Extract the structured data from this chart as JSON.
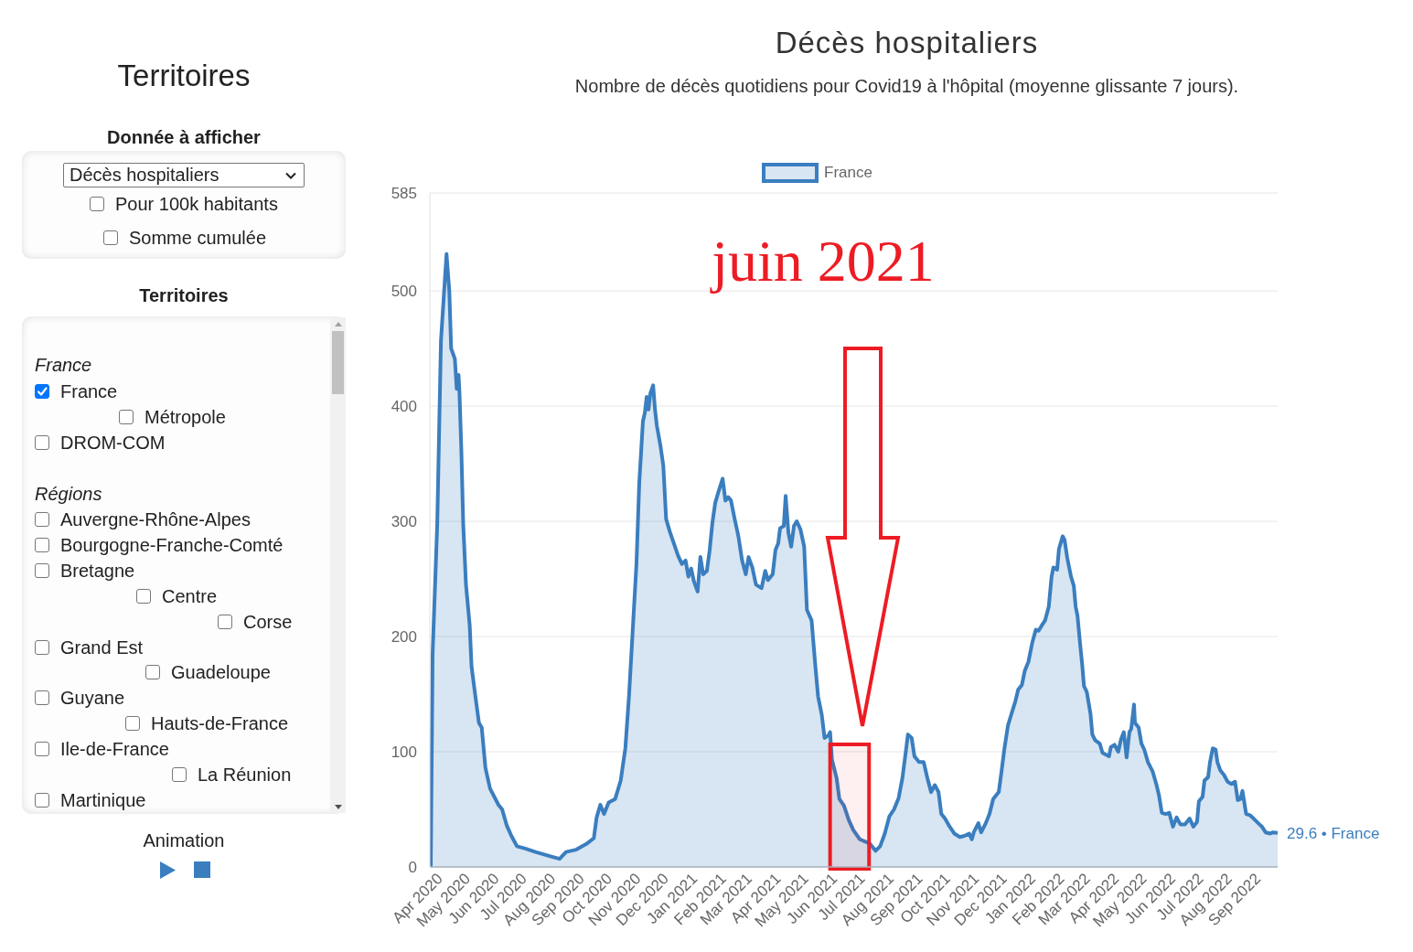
{
  "chart_data": [
    {
      "type": "other",
      "title": "Territoires",
      "annotations": [
        "Donnée à afficher",
        "Décès hospitaliers",
        "Pour 100k habitants",
        "Somme cumulée",
        "Territoires",
        "France",
        "France",
        "Métropole",
        "DROM-COM",
        "Régions",
        "Auvergne-Rhône-Alpes",
        "Bourgogne-Franche-Comté",
        "Bretagne",
        "Centre",
        "Corse",
        "Grand Est",
        "Guadeloupe",
        "Guyane",
        "Hauts-de-France",
        "Ile-de-France",
        "La Réunion",
        "Martinique",
        "Animation"
      ]
    },
    {
      "type": "area",
      "title": "Décès hospitaliers",
      "subtitle": "Nombre de décès quotidiens pour Covid19 à l'hôpital (moyenne glissante 7 jours).",
      "x": [
        "2020-03-29",
        "2020-03-31",
        "2020-04-05",
        "2020-04-09",
        "2020-04-15",
        "2020-04-18",
        "2020-04-20",
        "2020-04-24",
        "2020-04-26",
        "2020-04-28",
        "2020-04-29",
        "2020-05-01",
        "2020-05-03",
        "2020-05-06",
        "2020-05-10",
        "2020-05-12",
        "2020-05-16",
        "2020-05-20",
        "2020-05-23",
        "2020-05-27",
        "2020-06-01",
        "2020-06-10",
        "2020-06-14",
        "2020-06-19",
        "2020-06-24",
        "2020-06-30",
        "2020-07-09",
        "2020-07-20",
        "2020-08-06",
        "2020-08-15",
        "2020-08-22",
        "2020-09-02",
        "2020-09-13",
        "2020-09-21",
        "2020-09-24",
        "2020-09-28",
        "2020-10-02",
        "2020-10-07",
        "2020-10-14",
        "2020-10-20",
        "2020-10-25",
        "2020-10-29",
        "2020-11-02",
        "2020-11-06",
        "2020-11-09",
        "2020-11-13",
        "2020-11-15",
        "2020-11-17",
        "2020-11-19",
        "2020-11-21",
        "2020-11-24",
        "2020-11-26",
        "2020-11-28",
        "2020-12-02",
        "2020-12-05",
        "2020-12-08",
        "2020-12-12",
        "2020-12-21",
        "2020-12-25",
        "2020-12-29",
        "2021-01-01",
        "2021-01-04",
        "2021-01-07",
        "2021-01-11",
        "2021-01-14",
        "2021-01-17",
        "2021-01-21",
        "2021-01-24",
        "2021-01-27",
        "2021-01-30",
        "2021-02-03",
        "2021-02-07",
        "2021-02-10",
        "2021-02-13",
        "2021-02-16",
        "2021-02-20",
        "2021-02-24",
        "2021-02-28",
        "2021-03-04",
        "2021-03-07",
        "2021-03-11",
        "2021-03-15",
        "2021-03-21",
        "2021-03-25",
        "2021-03-28",
        "2021-04-02",
        "2021-04-05",
        "2021-04-08",
        "2021-04-10",
        "2021-04-14",
        "2021-04-16",
        "2021-04-19",
        "2021-04-22",
        "2021-04-25",
        "2021-04-28",
        "2021-05-02",
        "2021-05-06",
        "2021-05-09",
        "2021-05-14",
        "2021-05-18",
        "2021-05-21",
        "2021-05-25",
        "2021-05-28",
        "2021-06-01",
        "2021-06-03",
        "2021-06-05",
        "2021-06-10",
        "2021-06-13",
        "2021-06-18",
        "2021-06-23",
        "2021-06-28",
        "2021-07-05",
        "2021-07-11",
        "2021-07-16",
        "2021-07-22",
        "2021-07-27",
        "2021-08-01",
        "2021-08-06",
        "2021-08-11",
        "2021-08-16",
        "2021-08-20",
        "2021-08-24",
        "2021-08-26",
        "2021-08-30",
        "2021-09-02",
        "2021-09-07",
        "2021-09-12",
        "2021-09-16",
        "2021-09-20",
        "2021-09-24",
        "2021-09-28",
        "2021-10-01",
        "2021-10-05",
        "2021-10-10",
        "2021-10-15",
        "2021-10-21",
        "2021-10-26",
        "2021-10-31",
        "2021-11-03",
        "2021-11-05",
        "2021-11-10",
        "2021-11-13",
        "2021-11-18",
        "2021-11-22",
        "2021-11-26",
        "2021-12-02",
        "2021-12-05",
        "2021-12-08",
        "2021-12-12",
        "2021-12-15",
        "2021-12-20",
        "2021-12-23",
        "2021-12-27",
        "2021-12-30",
        "2022-01-03",
        "2022-01-07",
        "2022-01-11",
        "2022-01-14",
        "2022-01-17",
        "2022-01-21",
        "2022-01-25",
        "2022-01-28",
        "2022-01-30",
        "2022-02-03",
        "2022-02-05",
        "2022-02-09",
        "2022-02-11",
        "2022-02-14",
        "2022-02-18",
        "2022-02-21",
        "2022-02-23",
        "2022-02-25",
        "2022-02-28",
        "2022-03-02",
        "2022-03-04",
        "2022-03-07",
        "2022-03-11",
        "2022-03-13",
        "2022-03-16",
        "2022-03-21",
        "2022-03-24",
        "2022-03-31",
        "2022-04-02",
        "2022-04-06",
        "2022-04-10",
        "2022-04-13",
        "2022-04-16",
        "2022-04-19",
        "2022-04-22",
        "2022-04-24",
        "2022-04-27",
        "2022-04-28",
        "2022-05-02",
        "2022-05-05",
        "2022-05-08",
        "2022-05-12",
        "2022-05-17",
        "2022-05-21",
        "2022-05-24",
        "2022-05-27",
        "2022-05-31",
        "2022-06-04",
        "2022-06-08",
        "2022-06-12",
        "2022-06-16",
        "2022-06-21",
        "2022-06-26",
        "2022-06-30",
        "2022-07-04",
        "2022-07-06",
        "2022-07-10",
        "2022-07-12",
        "2022-07-16",
        "2022-07-18",
        "2022-07-21",
        "2022-07-24",
        "2022-07-26",
        "2022-07-29",
        "2022-08-02",
        "2022-08-06",
        "2022-08-10",
        "2022-08-14",
        "2022-08-17",
        "2022-08-20",
        "2022-08-22",
        "2022-08-26",
        "2022-08-30",
        "2022-09-03",
        "2022-09-08",
        "2022-09-12",
        "2022-09-16",
        "2022-09-21",
        "2022-09-24",
        "2022-09-29"
      ],
      "series": [
        {
          "name": "France",
          "color": "#3a7ebf",
          "values": [
            0,
            185,
            298,
            457,
            532,
            500,
            450,
            441,
            415,
            427,
            411,
            362,
            298,
            245,
            210,
            174,
            149,
            125,
            121,
            86,
            68,
            54,
            50,
            36,
            27,
            18,
            16,
            13,
            9,
            7,
            13,
            15,
            20,
            25,
            43,
            54,
            46,
            56,
            59,
            75,
            103,
            149,
            206,
            263,
            333,
            387,
            394,
            408,
            397,
            411,
            418,
            397,
            383,
            365,
            348,
            302,
            291,
            270,
            263,
            266,
            252,
            259,
            248,
            239,
            269,
            254,
            257,
            275,
            299,
            316,
            327,
            337,
            318,
            321,
            318,
            302,
            287,
            266,
            254,
            269,
            260,
            245,
            242,
            257,
            249,
            254,
            275,
            281,
            294,
            296,
            322,
            290,
            278,
            296,
            300,
            293,
            278,
            223,
            214,
            175,
            148,
            132,
            112,
            114,
            117,
            93,
            77,
            59,
            53,
            41,
            32,
            24,
            22,
            20,
            14,
            18,
            29,
            44,
            50,
            60,
            77,
            102,
            115,
            112,
            96,
            91,
            91,
            77,
            65,
            71,
            65,
            46,
            42,
            35,
            29,
            26,
            27,
            29,
            24,
            30,
            38,
            30,
            38,
            46,
            59,
            65,
            83,
            102,
            123,
            131,
            144,
            154,
            158,
            170,
            178,
            194,
            206,
            205,
            209,
            214,
            226,
            252,
            260,
            258,
            276,
            287,
            284,
            268,
            252,
            244,
            226,
            218,
            192,
            176,
            157,
            152,
            133,
            115,
            110,
            107,
            99,
            96,
            104,
            106,
            100,
            111,
            117,
            95,
            117,
            120,
            141,
            125,
            121,
            107,
            102,
            91,
            83,
            72,
            62,
            47,
            46,
            47,
            35,
            43,
            37,
            37,
            42,
            35,
            39,
            57,
            61,
            75,
            78,
            91,
            103,
            102,
            91,
            84,
            80,
            74,
            72,
            74,
            58,
            59,
            66,
            46,
            45,
            42,
            38,
            35,
            30,
            29,
            30,
            29.6
          ]
        }
      ],
      "xlim": [
        "2020-03-28",
        "2022-09-29"
      ],
      "xticks": [
        {
          "value": "2020-04",
          "label": "Apr 2020"
        },
        {
          "value": "2020-05",
          "label": "May 2020"
        },
        {
          "value": "2020-06",
          "label": "Jun 2020"
        },
        {
          "value": "2020-07",
          "label": "Jul 2020"
        },
        {
          "value": "2020-08",
          "label": "Aug 2020"
        },
        {
          "value": "2020-09",
          "label": "Sep 2020"
        },
        {
          "value": "2020-10",
          "label": "Oct 2020"
        },
        {
          "value": "2020-11",
          "label": "Nov 2020"
        },
        {
          "value": "2020-12",
          "label": "Dec 2020"
        },
        {
          "value": "2021-01",
          "label": "Jan 2021"
        },
        {
          "value": "2021-02",
          "label": "Feb 2021"
        },
        {
          "value": "2021-03",
          "label": "Mar 2021"
        },
        {
          "value": "2021-04",
          "label": "Apr 2021"
        },
        {
          "value": "2021-05",
          "label": "May 2021"
        },
        {
          "value": "2021-06",
          "label": "Jun 2021"
        },
        {
          "value": "2021-07",
          "label": "Jul 2021"
        },
        {
          "value": "2021-08",
          "label": "Aug 2021"
        },
        {
          "value": "2021-09",
          "label": "Sep 2021"
        },
        {
          "value": "2021-10",
          "label": "Oct 2021"
        },
        {
          "value": "2021-11",
          "label": "Nov 2021"
        },
        {
          "value": "2021-12",
          "label": "Dec 2021"
        },
        {
          "value": "2022-01",
          "label": "Jan 2022"
        },
        {
          "value": "2022-02",
          "label": "Feb 2022"
        },
        {
          "value": "2022-03",
          "label": "Mar 2022"
        },
        {
          "value": "2022-04",
          "label": "Apr 2022"
        },
        {
          "value": "2022-05",
          "label": "May 2022"
        },
        {
          "value": "2022-06",
          "label": "Jun 2022"
        },
        {
          "value": "2022-07",
          "label": "Jul 2022"
        },
        {
          "value": "2022-08",
          "label": "Aug 2022"
        },
        {
          "value": "2022-09",
          "label": "Sep 2022"
        }
      ],
      "ylim": [
        0,
        585
      ],
      "yticks": [
        0,
        100,
        200,
        300,
        400,
        500,
        585
      ],
      "grid": "y",
      "legend": "top",
      "line_style": "solid",
      "bands": [
        {
          "axis": "x",
          "from": "2021-06-01",
          "to": "2021-07-17",
          "label": "juin 2021",
          "color": "#ed1c24"
        }
      ],
      "annotations": [
        {
          "text": "29.6 • France",
          "x": "2022-09-29",
          "y": 29.6
        }
      ]
    }
  ]
}
